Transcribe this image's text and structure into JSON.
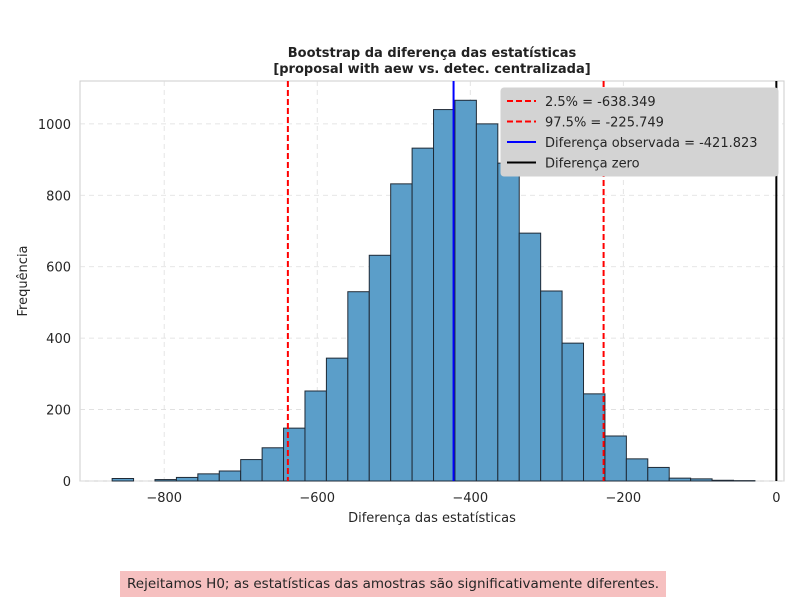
{
  "chart_data": {
    "type": "bar",
    "title": "Bootstrap da diferença das estatísticas",
    "subtitle": "[proposal with aew vs. detec. centralizada]",
    "xlabel": "Diferença das estatísticas",
    "ylabel": "Frequência",
    "xlim": [
      -910,
      10
    ],
    "ylim": [
      0,
      1120
    ],
    "xticks": [
      -800,
      -600,
      -400,
      -200,
      0
    ],
    "yticks": [
      0,
      200,
      400,
      600,
      800,
      1000
    ],
    "grid": true,
    "legend_position": "top-right",
    "bin_width": 28,
    "bins": [
      {
        "start": -868,
        "count": 7
      },
      {
        "start": -840,
        "count": 0
      },
      {
        "start": -812,
        "count": 4
      },
      {
        "start": -784,
        "count": 10
      },
      {
        "start": -756,
        "count": 20
      },
      {
        "start": -728,
        "count": 28
      },
      {
        "start": -700,
        "count": 60
      },
      {
        "start": -672,
        "count": 93
      },
      {
        "start": -644,
        "count": 148
      },
      {
        "start": -616,
        "count": 252
      },
      {
        "start": -588,
        "count": 344
      },
      {
        "start": -560,
        "count": 530
      },
      {
        "start": -532,
        "count": 632
      },
      {
        "start": -504,
        "count": 832
      },
      {
        "start": -476,
        "count": 932
      },
      {
        "start": -448,
        "count": 1040
      },
      {
        "start": -420,
        "count": 1066
      },
      {
        "start": -392,
        "count": 1000
      },
      {
        "start": -364,
        "count": 890
      },
      {
        "start": -336,
        "count": 694
      },
      {
        "start": -308,
        "count": 532
      },
      {
        "start": -280,
        "count": 386
      },
      {
        "start": -252,
        "count": 244
      },
      {
        "start": -224,
        "count": 126
      },
      {
        "start": -196,
        "count": 62
      },
      {
        "start": -168,
        "count": 38
      },
      {
        "start": -140,
        "count": 8
      },
      {
        "start": -112,
        "count": 6
      },
      {
        "start": -84,
        "count": 2
      },
      {
        "start": -56,
        "count": 1
      }
    ],
    "vlines": [
      {
        "label": "2.5% = -638.349",
        "x": -638.349,
        "color": "#ff0000",
        "style": "dashed"
      },
      {
        "label": "97.5% = -225.749",
        "x": -225.749,
        "color": "#ff0000",
        "style": "dashed"
      },
      {
        "label": "Diferença observada = -421.823",
        "x": -421.823,
        "color": "#0000ff",
        "style": "solid"
      },
      {
        "label": "Diferença zero",
        "x": 0,
        "color": "#000000",
        "style": "solid"
      }
    ],
    "bar_color": "#5b9ec9",
    "bar_edge_color": "#1f2a36"
  },
  "conclusion": "Rejeitamos H0; as estatísticas das amostras são significativamente diferentes.",
  "colors": {
    "legend_background": "#d3d3d3",
    "conclusion_background": "#f6c0c0"
  }
}
